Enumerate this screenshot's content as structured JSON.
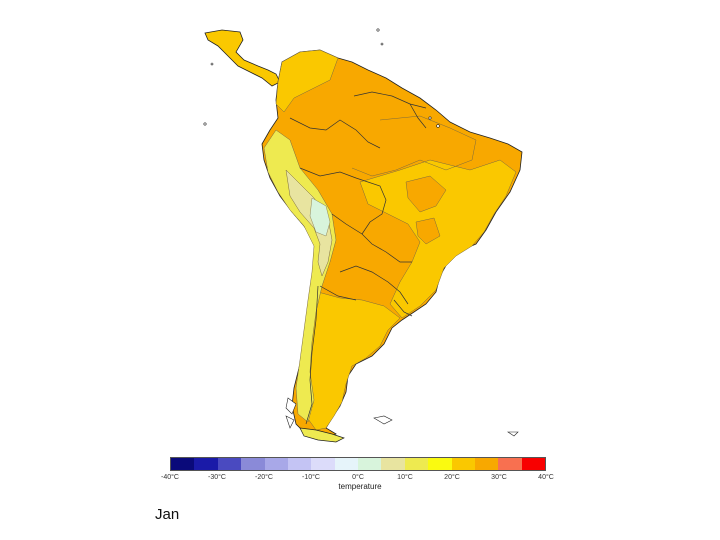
{
  "map": {
    "region": "South America",
    "colors": {
      "coast": "#222222",
      "border": "#333333",
      "contour": "#7a6a40"
    }
  },
  "legend": {
    "title": "temperature",
    "colors": [
      "#0a0a7a",
      "#1a1aa8",
      "#4a4ac0",
      "#8a8ad8",
      "#a8a8e8",
      "#c4c4f4",
      "#dcdcfa",
      "#e6f4fa",
      "#d8f4dc",
      "#e8e4a0",
      "#eeea50",
      "#fafa10",
      "#fac800",
      "#f8a800",
      "#f87050",
      "#f80000"
    ],
    "ticks": [
      {
        "label": "-40°C",
        "pos": 0
      },
      {
        "label": "-30°C",
        "pos": 0.125
      },
      {
        "label": "-20°C",
        "pos": 0.25
      },
      {
        "label": "-10°C",
        "pos": 0.375
      },
      {
        "label": "0°C",
        "pos": 0.5
      },
      {
        "label": "10°C",
        "pos": 0.625
      },
      {
        "label": "20°C",
        "pos": 0.75
      },
      {
        "label": "30°C",
        "pos": 0.875
      },
      {
        "label": "40°C",
        "pos": 1
      }
    ]
  },
  "month": "Jan"
}
